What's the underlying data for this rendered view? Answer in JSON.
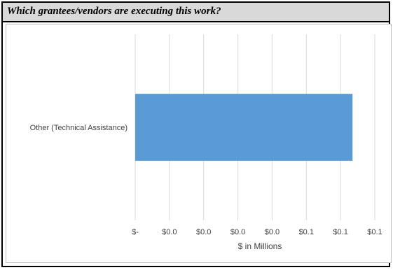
{
  "header": {
    "title": "Which grantees/vendors are executing this work?"
  },
  "chart_data": {
    "type": "bar",
    "orientation": "horizontal",
    "title": "",
    "xlabel": "$ in Millions",
    "ylabel": "",
    "categories": [
      "Other (Technical Assistance)"
    ],
    "values": [
      0.127
    ],
    "xlim": [
      0,
      0.14
    ],
    "tick_values": [
      0,
      0.02,
      0.04,
      0.06,
      0.08,
      0.1,
      0.12,
      0.14
    ],
    "tick_labels": [
      "$-",
      "$0.0",
      "$0.0",
      "$0.0",
      "$0.0",
      "$0.1",
      "$0.1",
      "$0.1"
    ],
    "grid": true,
    "legend": "none",
    "colors": {
      "bar": "#5b9bd5",
      "grid": "#d9d9d9",
      "text": "#404040"
    }
  }
}
